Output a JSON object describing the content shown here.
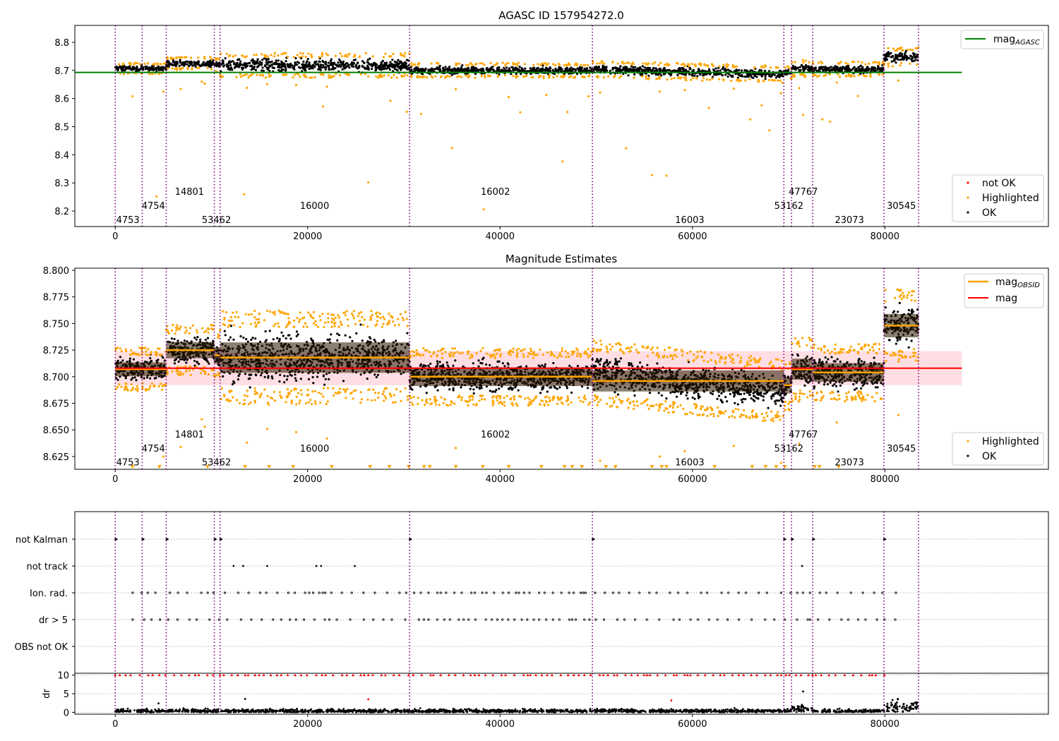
{
  "chart_data": [
    {
      "type": "scatter",
      "title": "AGASC ID 157954272.0",
      "xlim": [
        -4200,
        97000
      ],
      "ylim": [
        8.145,
        8.86
      ],
      "xticks": [
        0,
        20000,
        40000,
        60000,
        80000
      ],
      "xtick_labels": [
        "0",
        "20000",
        "40000",
        "60000",
        "80000"
      ],
      "yticks": [
        8.2,
        8.3,
        8.4,
        8.5,
        8.6,
        8.7,
        8.8
      ],
      "ytick_labels": [
        "8.2",
        "8.3",
        "8.4",
        "8.5",
        "8.6",
        "8.7",
        "8.8"
      ],
      "reference_line": {
        "name": "mag_AGASC",
        "y": 8.693,
        "x_range": [
          -4200,
          88000
        ],
        "color": "#008000"
      },
      "legend_upper": {
        "position": "top-right",
        "entries": [
          {
            "label": "mag",
            "subscript": "AGASC",
            "color": "#008000"
          }
        ]
      },
      "legend_lower": {
        "position": "bottom-right",
        "entries": [
          {
            "label": "not OK",
            "color": "#ff0000"
          },
          {
            "label": "Highlighted",
            "color": "#ffa500"
          },
          {
            "label": "OK",
            "color": "#000000"
          }
        ]
      },
      "segments": [
        {
          "x0": 0,
          "x1": 2800,
          "center": 8.707,
          "half_width": 0.012
        },
        {
          "x0": 2800,
          "x1": 5300,
          "center": 8.707,
          "half_width": 0.012
        },
        {
          "x0": 5300,
          "x1": 10300,
          "center": 8.725,
          "half_width": 0.014
        },
        {
          "x0": 10300,
          "x1": 10900,
          "center": 8.72,
          "half_width": 0.014
        },
        {
          "x0": 10900,
          "x1": 30600,
          "center": 8.718,
          "half_width": 0.026
        },
        {
          "x0": 30600,
          "x1": 49600,
          "center": 8.7,
          "half_width": 0.016
        },
        {
          "x0": 49600,
          "x1": 69500,
          "center": 8.696,
          "half_width": 0.018
        },
        {
          "x0": 69500,
          "x1": 70300,
          "center": 8.692,
          "half_width": 0.014
        },
        {
          "x0": 70300,
          "x1": 72500,
          "center": 8.707,
          "half_width": 0.018
        },
        {
          "x0": 72500,
          "x1": 79900,
          "center": 8.704,
          "half_width": 0.016
        },
        {
          "x0": 79900,
          "x1": 83500,
          "center": 8.748,
          "half_width": 0.02
        }
      ],
      "highlighted_outliers": [
        {
          "x": 1800,
          "y": 8.608
        },
        {
          "x": 4300,
          "y": 8.252
        },
        {
          "x": 5000,
          "y": 8.625
        },
        {
          "x": 6800,
          "y": 8.634
        },
        {
          "x": 9000,
          "y": 8.66
        },
        {
          "x": 9300,
          "y": 8.653
        },
        {
          "x": 13400,
          "y": 8.26
        },
        {
          "x": 13700,
          "y": 8.638
        },
        {
          "x": 15800,
          "y": 8.651
        },
        {
          "x": 18800,
          "y": 8.648
        },
        {
          "x": 21600,
          "y": 8.572
        },
        {
          "x": 22000,
          "y": 8.642
        },
        {
          "x": 26300,
          "y": 8.302
        },
        {
          "x": 28600,
          "y": 8.592
        },
        {
          "x": 30300,
          "y": 8.553
        },
        {
          "x": 31800,
          "y": 8.545
        },
        {
          "x": 35000,
          "y": 8.424
        },
        {
          "x": 35400,
          "y": 8.633
        },
        {
          "x": 38300,
          "y": 8.206
        },
        {
          "x": 40900,
          "y": 8.605
        },
        {
          "x": 42100,
          "y": 8.551
        },
        {
          "x": 44800,
          "y": 8.613
        },
        {
          "x": 46500,
          "y": 8.376
        },
        {
          "x": 47000,
          "y": 8.552
        },
        {
          "x": 49200,
          "y": 8.608
        },
        {
          "x": 50400,
          "y": 8.621
        },
        {
          "x": 53100,
          "y": 8.423
        },
        {
          "x": 55800,
          "y": 8.328
        },
        {
          "x": 56600,
          "y": 8.625
        },
        {
          "x": 57300,
          "y": 8.326
        },
        {
          "x": 59200,
          "y": 8.63
        },
        {
          "x": 61700,
          "y": 8.567
        },
        {
          "x": 64300,
          "y": 8.635
        },
        {
          "x": 66000,
          "y": 8.526
        },
        {
          "x": 67200,
          "y": 8.576
        },
        {
          "x": 68000,
          "y": 8.487
        },
        {
          "x": 69200,
          "y": 8.619
        },
        {
          "x": 71100,
          "y": 8.637
        },
        {
          "x": 71500,
          "y": 8.542
        },
        {
          "x": 73500,
          "y": 8.526
        },
        {
          "x": 74300,
          "y": 8.518
        },
        {
          "x": 75000,
          "y": 8.657
        },
        {
          "x": 77200,
          "y": 8.609
        },
        {
          "x": 81400,
          "y": 8.664
        }
      ],
      "obsid_boundaries": [
        0,
        2800,
        5300,
        10300,
        10900,
        30600,
        49600,
        69500,
        70300,
        72500,
        79900,
        83500
      ],
      "obsid_labels": [
        {
          "text": "4753",
          "x": 100,
          "y": 8.17
        },
        {
          "text": "4754",
          "x": 2750,
          "y": 8.22
        },
        {
          "text": "14801",
          "x": 6200,
          "y": 8.27
        },
        {
          "text": "53462",
          "x": 9000,
          "y": 8.17
        },
        {
          "text": "16000",
          "x": 19200,
          "y": 8.22
        },
        {
          "text": "16002",
          "x": 38000,
          "y": 8.27
        },
        {
          "text": "16003",
          "x": 58200,
          "y": 8.17
        },
        {
          "text": "53162",
          "x": 68500,
          "y": 8.22
        },
        {
          "text": "47767",
          "x": 70000,
          "y": 8.27
        },
        {
          "text": "23073",
          "x": 74800,
          "y": 8.17
        },
        {
          "text": "30545",
          "x": 80200,
          "y": 8.22
        }
      ]
    },
    {
      "type": "scatter",
      "title": "Magnitude Estimates",
      "xlim": [
        -4200,
        97000
      ],
      "ylim": [
        8.613,
        8.802
      ],
      "xticks": [
        0,
        20000,
        40000,
        60000,
        80000
      ],
      "xtick_labels": [
        "0",
        "20000",
        "40000",
        "60000",
        "80000"
      ],
      "yticks": [
        8.625,
        8.65,
        8.675,
        8.7,
        8.725,
        8.75,
        8.775,
        8.8
      ],
      "ytick_labels": [
        "8.625",
        "8.650",
        "8.675",
        "8.700",
        "8.725",
        "8.750",
        "8.775",
        "8.800"
      ],
      "reference_line": {
        "name": "mag",
        "y": 8.708,
        "x_range": [
          0,
          88000
        ],
        "color": "#ff0000",
        "band": [
          8.692,
          8.724
        ]
      },
      "legend_upper": {
        "position": "top-right",
        "entries": [
          {
            "label": "mag",
            "subscript": "OBSID",
            "color": "#ffa500"
          },
          {
            "label": "mag",
            "subscript": "",
            "color": "#ff0000"
          }
        ]
      },
      "legend_lower": {
        "position": "bottom-right",
        "entries": [
          {
            "label": "Highlighted",
            "color": "#ffa500"
          },
          {
            "label": "OK",
            "color": "#000000"
          }
        ]
      },
      "off_scale_markers_x": [
        1800,
        4600,
        9600,
        13500,
        16000,
        18500,
        22500,
        26500,
        28500,
        30500,
        32100,
        32700,
        35400,
        38200,
        40900,
        44300,
        46700,
        47500,
        48500,
        51000,
        52000,
        55800,
        56800,
        57300,
        62300,
        66200,
        67600,
        68700,
        69600,
        72700,
        73200,
        75200
      ],
      "obsid_labels": [
        {
          "text": "4753",
          "x": 100,
          "y": 8.62
        },
        {
          "text": "4754",
          "x": 2750,
          "y": 8.633
        },
        {
          "text": "14801",
          "x": 6200,
          "y": 8.646
        },
        {
          "text": "53462",
          "x": 9000,
          "y": 8.62
        },
        {
          "text": "16000",
          "x": 19200,
          "y": 8.633
        },
        {
          "text": "16002",
          "x": 38000,
          "y": 8.646
        },
        {
          "text": "16003",
          "x": 58200,
          "y": 8.62
        },
        {
          "text": "53162",
          "x": 68500,
          "y": 8.633
        },
        {
          "text": "47767",
          "x": 70000,
          "y": 8.646
        },
        {
          "text": "23073",
          "x": 74800,
          "y": 8.62
        },
        {
          "text": "30545",
          "x": 80200,
          "y": 8.633
        }
      ]
    },
    {
      "type": "scatter",
      "title": "",
      "xlim": [
        -4200,
        97000
      ],
      "category_labels": [
        "not Kalman",
        "not track",
        "Ion. rad.",
        "dr > 5",
        "OBS not OK"
      ],
      "not_track_x": [
        12300,
        13300,
        15800,
        20900,
        21400,
        24900,
        71400
      ]
    },
    {
      "type": "scatter",
      "title": "",
      "xlim": [
        -4200,
        97000
      ],
      "ylim": [
        -0.5,
        10.5
      ],
      "ylabel": "dr",
      "yticks": [
        0,
        5,
        10
      ],
      "ytick_labels": [
        "0",
        "5",
        "10"
      ],
      "xticks": [
        0,
        20000,
        40000,
        60000,
        80000
      ],
      "xtick_labels": [
        "0",
        "20000",
        "40000",
        "60000",
        "80000"
      ],
      "outliers": [
        {
          "x": 4500,
          "y": 2.4
        },
        {
          "x": 13500,
          "y": 3.6
        },
        {
          "x": 26300,
          "y": 3.5
        },
        {
          "x": 57800,
          "y": 3.2
        },
        {
          "x": 71500,
          "y": 5.6
        }
      ]
    }
  ]
}
